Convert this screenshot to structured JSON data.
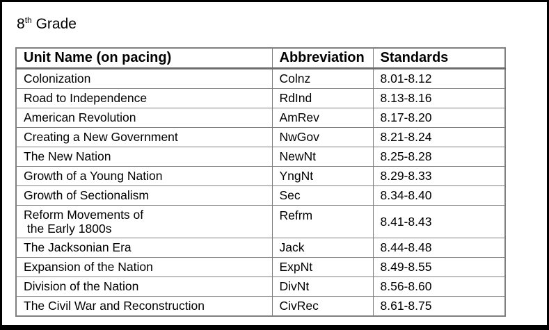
{
  "title": {
    "grade_number": "8",
    "grade_suffix": "th",
    "grade_word": "Grade"
  },
  "table": {
    "headers": [
      "Unit Name (on pacing)",
      "Abbreviation",
      "Standards"
    ],
    "rows": [
      {
        "unit": "Colonization",
        "abbr": "Colnz",
        "standards": "8.01-8.12"
      },
      {
        "unit": "Road to Independence",
        "abbr": "RdInd",
        "standards": "8.13-8.16"
      },
      {
        "unit": "American Revolution",
        "abbr": "AmRev",
        "standards": "8.17-8.20"
      },
      {
        "unit": "Creating a New Government",
        "abbr": "NwGov",
        "standards": "8.21-8.24"
      },
      {
        "unit": "The New Nation",
        "abbr": "NewNt",
        "standards": "8.25-8.28"
      },
      {
        "unit": "Growth of a Young Nation",
        "abbr": "YngNt",
        "standards": "8.29-8.33"
      },
      {
        "unit": "Growth of Sectionalism",
        "abbr": "Sec",
        "standards": "8.34-8.40"
      },
      {
        "unit": "Reform Movements of\n the Early 1800s",
        "abbr": "Refrm",
        "standards": "8.41-8.43"
      },
      {
        "unit": "The Jacksonian Era",
        "abbr": "Jack",
        "standards": "8.44-8.48"
      },
      {
        "unit": "Expansion of the Nation",
        "abbr": "ExpNt",
        "standards": "8.49-8.55"
      },
      {
        "unit": "Division of the Nation",
        "abbr": "DivNt",
        "standards": "8.56-8.60"
      },
      {
        "unit": "The Civil War and Reconstruction",
        "abbr": "CivRec",
        "standards": "8.61-8.75"
      }
    ]
  },
  "colors": {
    "frame": "#000000",
    "table_border": "#7f7f7f",
    "header_underline": "#6e6e6e",
    "text": "#000000",
    "background": "#ffffff"
  }
}
